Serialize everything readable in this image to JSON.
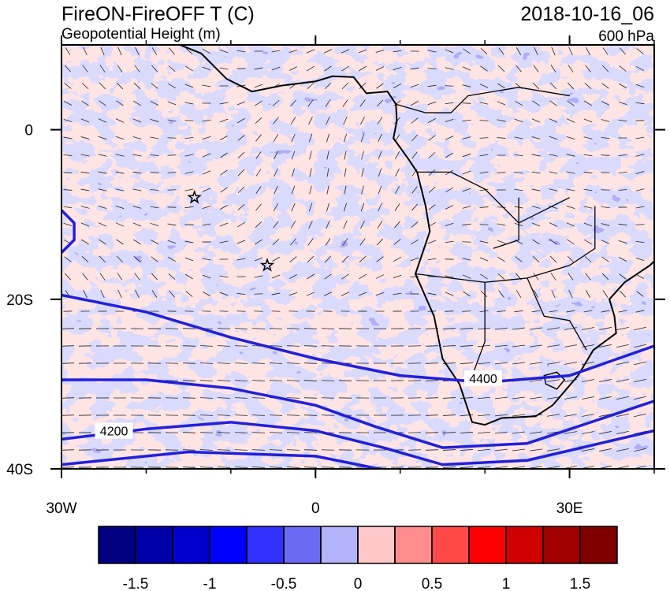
{
  "title": "FireON-FireOFF T (C)",
  "subtitle": "Geopotential Height (m)",
  "date": "2018-10-16_06",
  "level": "600 hPa",
  "map": {
    "lonlim": [
      -30,
      40
    ],
    "latlim": [
      -40,
      10
    ],
    "xticks": [
      {
        "value": -30,
        "label": "30W"
      },
      0,
      {
        "value": 30,
        "label": "30E"
      }
    ],
    "yticks": [
      0,
      {
        "value": -20,
        "label": "20S"
      },
      {
        "value": -40,
        "label": "40S"
      }
    ],
    "x_minor_ticks": [
      -20,
      -10,
      10,
      20,
      40
    ]
  },
  "contour_labels": [
    {
      "value": 4200,
      "lon": -23.8,
      "lat": -35.5
    },
    {
      "value": 4400,
      "lon": 19.8,
      "lat": -29.3
    }
  ],
  "markers": [
    {
      "lon": -14.3,
      "lat": -8
    },
    {
      "lon": -5.7,
      "lat": -16
    }
  ],
  "colorbar": {
    "colors": [
      "#000080",
      "#0000a8",
      "#0000cd",
      "#0000ff",
      "#3030ff",
      "#6a6af4",
      "#b4b4fa",
      "#ffc8c8",
      "#ff8c8c",
      "#ff4848",
      "#ff0000",
      "#d00000",
      "#a00000",
      "#800000"
    ],
    "levels": [
      -1.5,
      -1.25,
      -1,
      -0.75,
      -0.5,
      -0.25,
      0,
      0.25,
      0.5,
      0.75,
      1,
      1.25,
      1.5
    ],
    "ticks": [
      -1.5,
      -1,
      -0.5,
      0,
      0.5,
      1,
      1.5
    ]
  }
}
